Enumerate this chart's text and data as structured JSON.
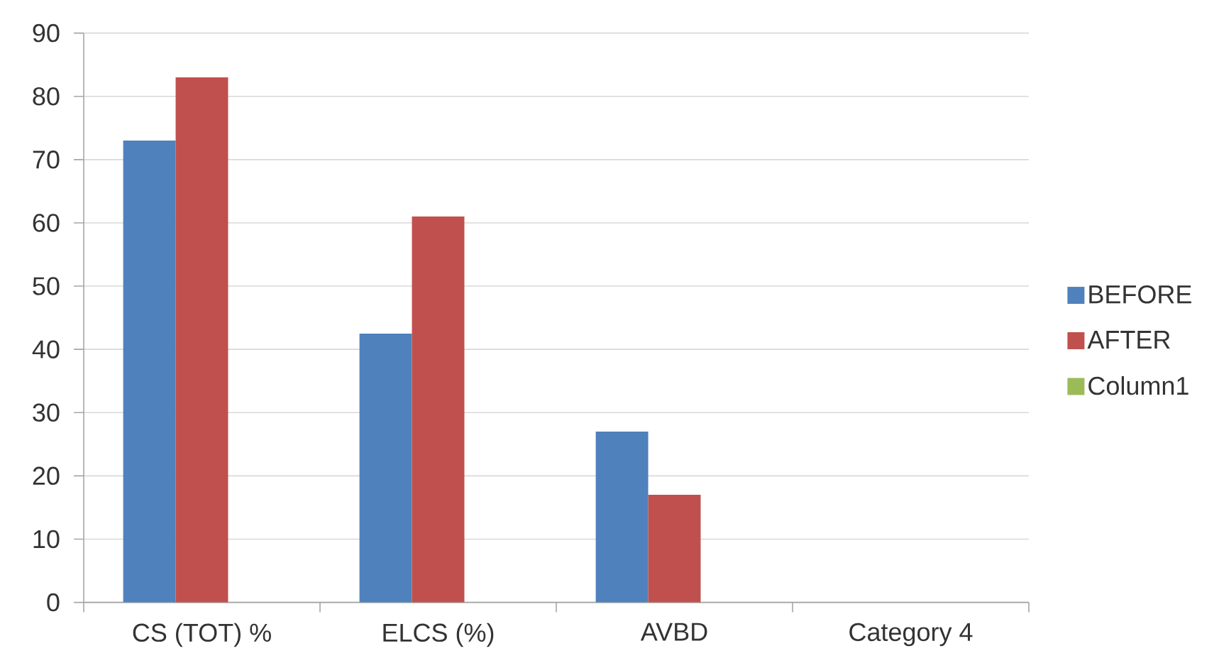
{
  "chart_data": {
    "type": "bar",
    "categories": [
      "CS (TOT) %",
      "ELCS (%)",
      "AVBD",
      "Category 4"
    ],
    "series": [
      {
        "name": "BEFORE",
        "color": "#4f81bd",
        "values": [
          73,
          42.5,
          27,
          null
        ]
      },
      {
        "name": "AFTER",
        "color": "#c0504d",
        "values": [
          83,
          61,
          17,
          null
        ]
      },
      {
        "name": "Column1",
        "color": "#9bbb59",
        "values": [
          null,
          null,
          null,
          null
        ]
      }
    ],
    "ylim": [
      0,
      90
    ],
    "yticks": [
      0,
      10,
      20,
      30,
      40,
      50,
      60,
      70,
      80,
      90
    ],
    "grid": "y",
    "legend": "right"
  }
}
